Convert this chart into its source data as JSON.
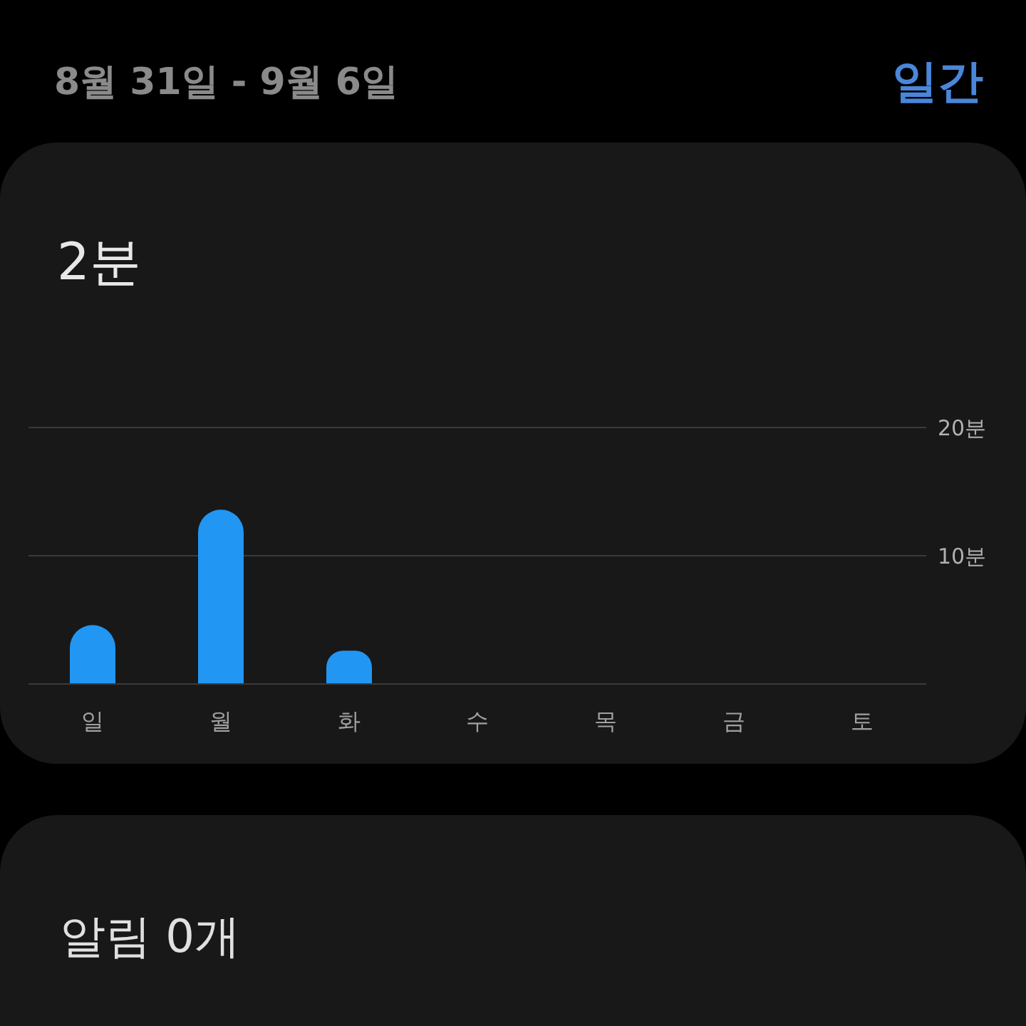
{
  "chart_data": {
    "type": "bar",
    "title": "8월 31일 - 9월 6일",
    "subtitle": "2분",
    "annotations": [
      "일간",
      "알림 0개"
    ],
    "categories": [
      "일",
      "월",
      "화",
      "수",
      "목",
      "금",
      "토"
    ],
    "values": [
      4.6,
      13.6,
      2.6,
      null,
      null,
      null,
      null
    ],
    "color": "#2196f3",
    "ylim": [
      0,
      20
    ],
    "yticks": [
      {
        "value": 0,
        "label": null
      },
      {
        "value": 10,
        "label": "10분"
      },
      {
        "value": 20,
        "label": "20분"
      }
    ],
    "grid": "y"
  }
}
